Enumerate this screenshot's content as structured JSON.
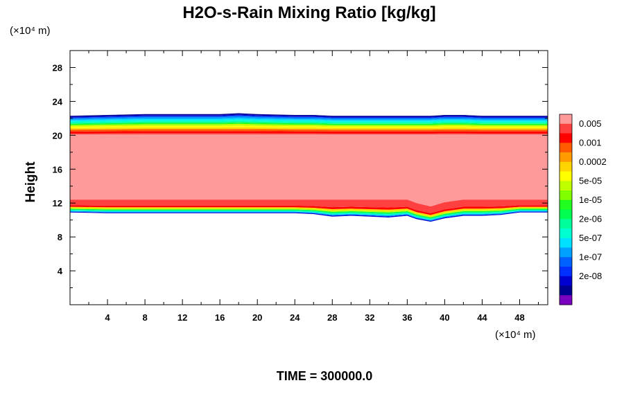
{
  "chart_data": {
    "type": "contour",
    "title": "H2O-s-Rain Mixing Ratio [kg/kg]",
    "ylabel": "Height",
    "y_unit_label": "(×10⁴ m)",
    "x_unit_label": "(×10⁴ m)",
    "footer": "TIME = 300000.0",
    "xlim": [
      0,
      51
    ],
    "ylim": [
      0,
      30
    ],
    "x_ticks": [
      "4",
      "8",
      "12",
      "16",
      "20",
      "24",
      "28",
      "32",
      "36",
      "40",
      "44",
      "48"
    ],
    "y_ticks": [
      "4",
      "8",
      "12",
      "16",
      "20",
      "24",
      "28"
    ],
    "legend": {
      "placement": "right",
      "labels": [
        "0.005",
        "0.001",
        "0.0002",
        "5e-05",
        "1e-05",
        "2e-06",
        "5e-07",
        "1e-07",
        "2e-08"
      ],
      "colors": [
        "#ff9a9a",
        "#ff4040",
        "#ff0000",
        "#ff5a00",
        "#ff9a00",
        "#ffd400",
        "#ffff00",
        "#c0ff00",
        "#80ff00",
        "#20ff20",
        "#00ff50",
        "#00ff9a",
        "#00ffd0",
        "#00e0ff",
        "#00a0ff",
        "#0060ff",
        "#0030ff",
        "#0000d0",
        "#000090",
        "#7a00c0"
      ]
    },
    "field": {
      "x": [
        0,
        4,
        8,
        12,
        16,
        18,
        20,
        24,
        26,
        28,
        30,
        32,
        34,
        35,
        36,
        37,
        38.5,
        40,
        42,
        44,
        46,
        48,
        51
      ],
      "top_height": [
        22.3,
        22.4,
        22.5,
        22.5,
        22.5,
        22.6,
        22.5,
        22.4,
        22.4,
        22.3,
        22.3,
        22.3,
        22.3,
        22.3,
        22.3,
        22.3,
        22.3,
        22.4,
        22.4,
        22.3,
        22.3,
        22.3,
        22.3
      ],
      "core_top": [
        20.1,
        20.1,
        20.1,
        20.1,
        20.1,
        20.1,
        20.1,
        20.1,
        20.1,
        20.1,
        20.1,
        20.1,
        20.1,
        20.1,
        20.1,
        20.1,
        20.1,
        20.1,
        20.1,
        20.1,
        20.1,
        20.1,
        20.1
      ],
      "core_bottom": [
        12.4,
        12.4,
        12.4,
        12.4,
        12.4,
        12.4,
        12.4,
        12.4,
        12.4,
        12.4,
        12.4,
        12.4,
        12.4,
        12.4,
        12.4,
        12.0,
        11.6,
        12.1,
        12.4,
        12.4,
        12.4,
        12.4,
        12.4
      ],
      "bottom_height": [
        10.9,
        10.8,
        10.8,
        10.8,
        10.8,
        10.8,
        10.8,
        10.8,
        10.7,
        10.4,
        10.5,
        10.4,
        10.3,
        10.4,
        10.5,
        10.1,
        9.8,
        10.2,
        10.5,
        10.5,
        10.6,
        10.9,
        10.9
      ]
    }
  }
}
